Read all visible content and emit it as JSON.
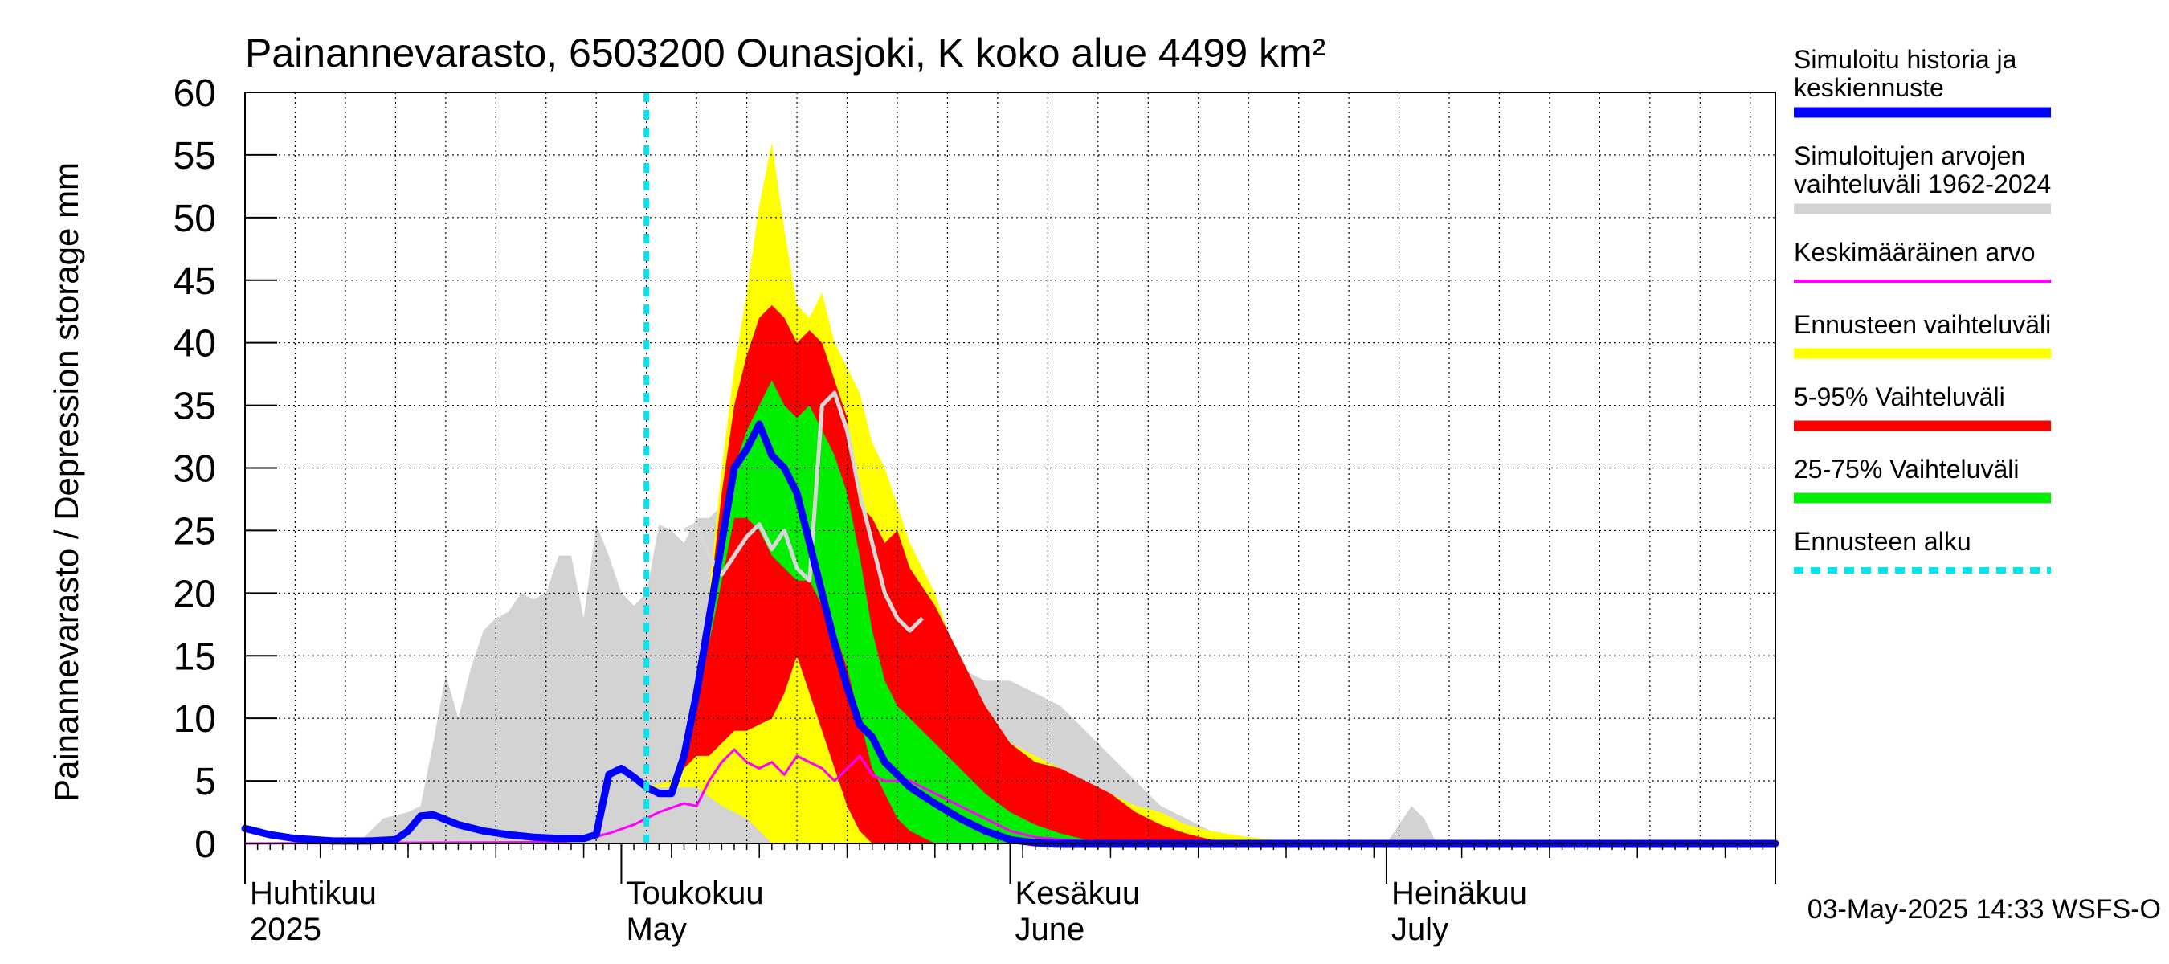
{
  "chart_data": {
    "type": "area",
    "title": "Painannevarasto, 6503200 Ounasjoki, K koko alue 4499 km²",
    "ylabel": "Painannevarasto / Depression storage    mm",
    "ylim": [
      0,
      60
    ],
    "yticks": [
      0,
      5,
      10,
      15,
      20,
      25,
      30,
      35,
      40,
      45,
      50,
      55,
      60
    ],
    "x_start": "2025-04-01",
    "x_end": "2025-08-01",
    "grid": true,
    "legend_position": "right",
    "month_labels": [
      {
        "date": "2025-04-01",
        "fi": "Huhtikuu",
        "en": "2025"
      },
      {
        "date": "2025-05-01",
        "fi": "Toukokuu",
        "en": "May"
      },
      {
        "date": "2025-06-01",
        "fi": "Kesäkuu",
        "en": "June"
      },
      {
        "date": "2025-07-01",
        "fi": "Heinäkuu",
        "en": "July"
      }
    ],
    "forecast_start": "2025-05-03",
    "timestamp": "03-May-2025 14:33 WSFS-O",
    "colors": {
      "hist_range": "#d3d3d3",
      "forecast_range": "#ffff00",
      "p5_95": "#ff0000",
      "p25_75": "#00ee00",
      "simulated": "#0000ff",
      "mean": "#ff00ff",
      "forecast_start": "#00e5ee",
      "median_line": "#d8d8d8"
    },
    "legend": [
      {
        "label": "Simuloitu historia ja",
        "label2": "keskiennuste",
        "color": "#0000ff",
        "style": "thick"
      },
      {
        "label": "Simuloitujen arvojen",
        "label2": "vaihteluväli 1962-2024",
        "color": "#d3d3d3",
        "style": "thick"
      },
      {
        "label": "Keskimääräinen arvo",
        "label2": "",
        "color": "#ff00ff",
        "style": "thin"
      },
      {
        "label": "Ennusteen vaihteluväli",
        "label2": "",
        "color": "#ffff00",
        "style": "thick"
      },
      {
        "label": "5-95% Vaihteluväli",
        "label2": "",
        "color": "#ff0000",
        "style": "thick"
      },
      {
        "label": "25-75% Vaihteluväli",
        "label2": "",
        "color": "#00ee00",
        "style": "thick"
      },
      {
        "label": "Ennusteen alku",
        "label2": "",
        "color": "#00e5ee",
        "style": "dashed"
      }
    ],
    "series": {
      "hist_range_upper": {
        "x": [
          "2025-04-01",
          "2025-04-10",
          "2025-04-12",
          "2025-04-14",
          "2025-04-15",
          "2025-04-16",
          "2025-04-17",
          "2025-04-18",
          "2025-04-19",
          "2025-04-20",
          "2025-04-21",
          "2025-04-22",
          "2025-04-23",
          "2025-04-24",
          "2025-04-25",
          "2025-04-26",
          "2025-04-27",
          "2025-04-28",
          "2025-04-29",
          "2025-04-30",
          "2025-05-01",
          "2025-05-02",
          "2025-05-03",
          "2025-05-04",
          "2025-05-05",
          "2025-05-06",
          "2025-05-07",
          "2025-05-08",
          "2025-05-09",
          "2025-05-10",
          "2025-05-11",
          "2025-05-12",
          "2025-05-14",
          "2025-05-16",
          "2025-05-18",
          "2025-05-19",
          "2025-05-20",
          "2025-05-21",
          "2025-05-22",
          "2025-05-24",
          "2025-05-26",
          "2025-05-28",
          "2025-05-30",
          "2025-06-01",
          "2025-06-03",
          "2025-06-05",
          "2025-06-07",
          "2025-06-09",
          "2025-06-11",
          "2025-06-13",
          "2025-06-15",
          "2025-06-17",
          "2025-06-20",
          "2025-06-24",
          "2025-06-28",
          "2025-07-01",
          "2025-07-03",
          "2025-07-04",
          "2025-07-05",
          "2025-07-07",
          "2025-07-10",
          "2025-08-01"
        ],
        "y": [
          0,
          0,
          2,
          2.5,
          3,
          8,
          13.5,
          10,
          14,
          17,
          18,
          18.5,
          20,
          19.5,
          20,
          23,
          23,
          18,
          25.5,
          23,
          20,
          19,
          20,
          25.5,
          25,
          24,
          26,
          26,
          27,
          25,
          27,
          26,
          26,
          38,
          40,
          38,
          34,
          28,
          22,
          17,
          19,
          14,
          13,
          13,
          12,
          11,
          9,
          7,
          5,
          3,
          2,
          1,
          0.3,
          0,
          0,
          0,
          3,
          2,
          0,
          0,
          0,
          0
        ]
      },
      "forecast_range_upper": {
        "x": [
          "2025-05-03",
          "2025-05-05",
          "2025-05-06",
          "2025-05-07",
          "2025-05-08",
          "2025-05-09",
          "2025-05-10",
          "2025-05-11",
          "2025-05-12",
          "2025-05-13",
          "2025-05-14",
          "2025-05-15",
          "2025-05-16",
          "2025-05-17",
          "2025-05-18",
          "2025-05-19",
          "2025-05-20",
          "2025-05-21",
          "2025-05-22",
          "2025-05-23",
          "2025-05-24",
          "2025-05-26",
          "2025-05-28",
          "2025-05-30",
          "2025-06-01",
          "2025-06-03",
          "2025-06-05",
          "2025-06-07",
          "2025-06-09",
          "2025-06-11",
          "2025-06-13",
          "2025-06-15",
          "2025-06-17",
          "2025-06-20",
          "2025-06-23",
          "2025-06-25",
          "2025-08-01"
        ],
        "y": [
          4.5,
          5,
          6,
          11,
          20,
          30,
          38,
          44,
          51,
          56,
          49,
          43,
          42,
          44,
          40,
          38,
          36,
          32,
          30,
          27,
          24,
          20,
          14,
          11,
          8,
          7,
          6,
          5,
          4,
          3,
          2.5,
          1.5,
          1,
          0.5,
          0.2,
          0,
          0
        ]
      },
      "p5_95_upper": {
        "x": [
          "2025-05-03",
          "2025-05-05",
          "2025-05-06",
          "2025-05-07",
          "2025-05-08",
          "2025-05-09",
          "2025-05-10",
          "2025-05-11",
          "2025-05-12",
          "2025-05-13",
          "2025-05-14",
          "2025-05-15",
          "2025-05-16",
          "2025-05-17",
          "2025-05-18",
          "2025-05-19",
          "2025-05-20",
          "2025-05-21",
          "2025-05-22",
          "2025-05-23",
          "2025-05-24",
          "2025-05-26",
          "2025-05-28",
          "2025-05-30",
          "2025-06-01",
          "2025-06-03",
          "2025-06-05",
          "2025-06-07",
          "2025-06-09",
          "2025-06-11",
          "2025-06-13",
          "2025-06-15",
          "2025-06-17",
          "2025-06-20",
          "2025-08-01"
        ],
        "y": [
          4.5,
          5,
          6,
          11,
          19,
          28,
          35,
          39,
          42,
          43,
          42,
          40,
          41,
          40,
          37,
          34,
          27,
          26,
          24,
          25,
          22,
          19,
          15,
          11,
          8,
          6.5,
          6,
          5,
          4,
          2.5,
          1.5,
          0.8,
          0.3,
          0,
          0
        ]
      },
      "p25_75_upper": {
        "x": [
          "2025-05-03",
          "2025-05-05",
          "2025-05-06",
          "2025-05-07",
          "2025-05-08",
          "2025-05-09",
          "2025-05-10",
          "2025-05-11",
          "2025-05-12",
          "2025-05-13",
          "2025-05-14",
          "2025-05-15",
          "2025-05-16",
          "2025-05-17",
          "2025-05-18",
          "2025-05-19",
          "2025-05-20",
          "2025-05-21",
          "2025-05-22",
          "2025-05-23",
          "2025-05-24",
          "2025-05-26",
          "2025-05-28",
          "2025-05-30",
          "2025-06-01",
          "2025-06-03",
          "2025-06-05",
          "2025-06-07",
          "2025-06-09",
          "2025-06-11",
          "2025-08-01"
        ],
        "y": [
          4.5,
          5,
          6,
          9,
          16,
          24,
          30,
          33,
          35,
          37,
          35,
          34,
          35,
          33,
          31,
          28,
          23,
          17,
          13,
          11,
          10,
          8,
          6,
          4,
          2.5,
          1.5,
          0.8,
          0.3,
          0.1,
          0,
          0
        ]
      },
      "p25_75_lower": {
        "x": [
          "2025-05-03",
          "2025-05-05",
          "2025-05-06",
          "2025-05-07",
          "2025-05-08",
          "2025-05-09",
          "2025-05-10",
          "2025-05-11",
          "2025-05-12",
          "2025-05-13",
          "2025-05-14",
          "2025-05-15",
          "2025-05-16",
          "2025-05-17",
          "2025-05-18",
          "2025-05-19",
          "2025-05-20",
          "2025-05-21",
          "2025-05-22",
          "2025-05-23",
          "2025-05-24",
          "2025-05-26",
          "2025-05-28",
          "2025-05-30",
          "2025-06-01",
          "2025-06-03",
          "2025-06-05",
          "2025-06-07",
          "2025-06-09",
          "2025-06-11",
          "2025-08-01"
        ],
        "y": [
          4.5,
          5,
          6,
          9,
          16,
          21,
          26,
          26,
          25,
          23,
          22,
          21,
          21,
          19,
          17,
          14,
          10,
          6,
          4,
          2,
          1,
          0,
          0,
          0,
          0,
          0,
          0,
          0,
          0,
          0,
          0
        ]
      },
      "p5_95_lower": {
        "x": [
          "2025-05-03",
          "2025-05-05",
          "2025-05-06",
          "2025-05-07",
          "2025-05-08",
          "2025-05-09",
          "2025-05-10",
          "2025-05-11",
          "2025-05-12",
          "2025-05-13",
          "2025-05-14",
          "2025-05-15",
          "2025-05-16",
          "2025-05-17",
          "2025-05-18",
          "2025-05-19",
          "2025-05-20",
          "2025-05-21",
          "2025-05-22",
          "2025-05-23",
          "2025-05-24",
          "2025-08-01"
        ],
        "y": [
          4.5,
          5,
          6,
          7,
          7,
          8,
          9,
          9,
          9.5,
          10,
          12,
          15,
          12,
          9,
          6,
          3,
          1,
          0,
          0,
          0,
          0,
          0
        ]
      },
      "forecast_range_lower": {
        "x": [
          "2025-05-03",
          "2025-05-05",
          "2025-05-07",
          "2025-05-09",
          "2025-05-11",
          "2025-05-13",
          "2025-05-15",
          "2025-05-17",
          "2025-05-19",
          "2025-05-21",
          "2025-08-01"
        ],
        "y": [
          4.5,
          4.5,
          4.5,
          3,
          2,
          0,
          0,
          0,
          0,
          0,
          0
        ]
      },
      "simulated": {
        "x": [
          "2025-04-01",
          "2025-04-03",
          "2025-04-05",
          "2025-04-08",
          "2025-04-11",
          "2025-04-13",
          "2025-04-14",
          "2025-04-15",
          "2025-04-16",
          "2025-04-18",
          "2025-04-20",
          "2025-04-22",
          "2025-04-24",
          "2025-04-26",
          "2025-04-28",
          "2025-04-29",
          "2025-04-30",
          "2025-05-01",
          "2025-05-02",
          "2025-05-03",
          "2025-05-04",
          "2025-05-05",
          "2025-05-06",
          "2025-05-07",
          "2025-05-08",
          "2025-05-09",
          "2025-05-10",
          "2025-05-11",
          "2025-05-12",
          "2025-05-13",
          "2025-05-14",
          "2025-05-15",
          "2025-05-16",
          "2025-05-17",
          "2025-05-18",
          "2025-05-19",
          "2025-05-20",
          "2025-05-21",
          "2025-05-22",
          "2025-05-23",
          "2025-05-24",
          "2025-05-26",
          "2025-05-28",
          "2025-05-30",
          "2025-06-01",
          "2025-06-03",
          "2025-06-05",
          "2025-06-07",
          "2025-06-09",
          "2025-08-01"
        ],
        "y": [
          1.2,
          0.7,
          0.4,
          0.2,
          0.2,
          0.3,
          1,
          2.2,
          2.3,
          1.5,
          1,
          0.7,
          0.5,
          0.4,
          0.4,
          0.7,
          5.5,
          6,
          5.3,
          4.5,
          4,
          4,
          7,
          12,
          18,
          24,
          30,
          31.5,
          33.5,
          31,
          30,
          28,
          24,
          20,
          16,
          12.5,
          9.5,
          8.5,
          6.5,
          5.5,
          4.5,
          3.2,
          2,
          1,
          0.3,
          0.05,
          0,
          0,
          0,
          0
        ]
      },
      "mean": {
        "x": [
          "2025-04-01",
          "2025-04-26",
          "2025-04-28",
          "2025-04-30",
          "2025-05-02",
          "2025-05-04",
          "2025-05-06",
          "2025-05-07",
          "2025-05-08",
          "2025-05-09",
          "2025-05-10",
          "2025-05-11",
          "2025-05-12",
          "2025-05-13",
          "2025-05-14",
          "2025-05-15",
          "2025-05-16",
          "2025-05-17",
          "2025-05-18",
          "2025-05-19",
          "2025-05-20",
          "2025-05-21",
          "2025-05-22",
          "2025-05-23",
          "2025-05-24",
          "2025-05-26",
          "2025-05-28",
          "2025-05-30",
          "2025-06-01",
          "2025-06-03",
          "2025-06-05",
          "2025-06-07",
          "2025-06-09",
          "2025-06-11",
          "2025-06-13",
          "2025-06-15",
          "2025-06-17",
          "2025-06-20",
          "2025-08-01"
        ],
        "y": [
          0,
          0.1,
          0.3,
          0.8,
          1.5,
          2.5,
          3.2,
          3,
          5,
          6.5,
          7.5,
          6.5,
          6,
          6.5,
          5.5,
          7,
          6.5,
          6,
          5,
          6,
          7,
          5.5,
          5,
          5,
          5,
          4,
          3,
          2,
          1,
          0.5,
          0.3,
          0.2,
          0.1,
          0.1,
          0.1,
          0.1,
          0,
          0,
          0
        ]
      },
      "median_line": {
        "x": [
          "2025-05-06",
          "2025-05-07",
          "2025-05-08",
          "2025-05-09",
          "2025-05-10",
          "2025-05-11",
          "2025-05-12",
          "2025-05-13",
          "2025-05-14",
          "2025-05-15",
          "2025-05-16",
          "2025-05-17",
          "2025-05-18",
          "2025-05-19",
          "2025-05-20",
          "2025-05-21",
          "2025-05-22",
          "2025-05-23",
          "2025-05-24",
          "2025-05-25"
        ],
        "y": [
          25,
          25.5,
          23,
          21.5,
          23,
          24.5,
          25.5,
          23.5,
          25,
          22,
          21,
          35,
          36,
          33,
          28,
          24,
          20,
          18,
          17,
          18
        ]
      }
    }
  }
}
